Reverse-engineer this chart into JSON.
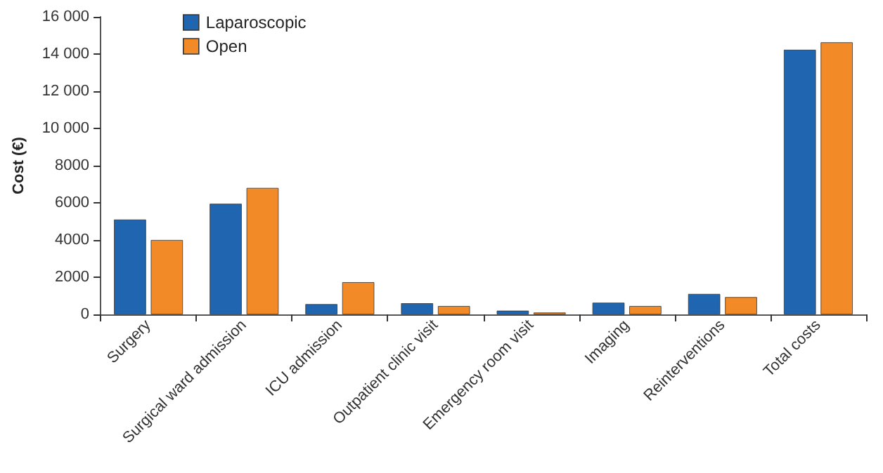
{
  "chart_data": {
    "type": "bar",
    "ylabel": "Cost (€)",
    "categories": [
      "Surgery",
      "Surgical ward admission",
      "ICU admission",
      "Outpatient clinic visit",
      "Emergency room visit",
      "Imaging",
      "Reinterventions",
      "Total costs"
    ],
    "series": [
      {
        "name": "Laparoscopic",
        "color": "#1f65b0",
        "values": [
          5100,
          5950,
          550,
          600,
          200,
          630,
          1100,
          14230
        ]
      },
      {
        "name": "Open",
        "color": "#f28a27",
        "values": [
          4000,
          6800,
          1730,
          450,
          100,
          450,
          930,
          14630
        ]
      }
    ],
    "ylim": [
      0,
      16000
    ],
    "yticks": [
      0,
      2000,
      4000,
      6000,
      8000,
      {
        "value": 10000,
        "label": "10 000"
      },
      {
        "value": 12000,
        "label": "12 000"
      },
      {
        "value": 14000,
        "label": "14 000"
      },
      {
        "value": 16000,
        "label": "16 000"
      }
    ],
    "grid": false,
    "legend": "top left"
  }
}
